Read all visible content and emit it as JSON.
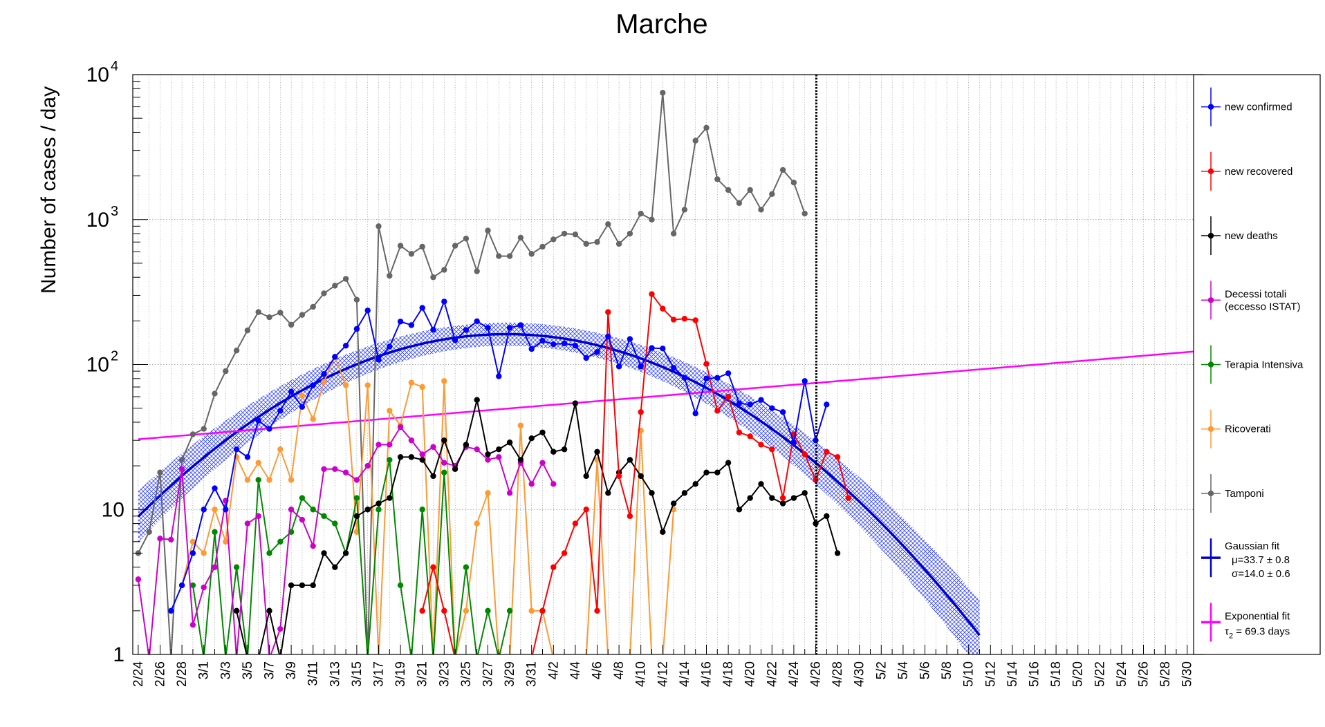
{
  "chart_data": {
    "type": "line",
    "title": "Marche",
    "ylabel": "Number of cases / day",
    "xlabel": "",
    "yscale": "log",
    "ylim": [
      1,
      10000
    ],
    "x_start": "2/24",
    "x_end": "5/31",
    "y_tick_labels": [
      {
        "value": 1,
        "text": "1"
      },
      {
        "value": 10,
        "text": "10"
      },
      {
        "value": 100,
        "base": "10",
        "exp": "2"
      },
      {
        "value": 1000,
        "base": "10",
        "exp": "3"
      },
      {
        "value": 10000,
        "base": "10",
        "exp": "4"
      }
    ],
    "x_tick_labels": [
      "2/24",
      "2/26",
      "2/28",
      "3/1",
      "3/3",
      "3/5",
      "3/7",
      "3/9",
      "3/11",
      "3/13",
      "3/15",
      "3/17",
      "3/19",
      "3/21",
      "3/23",
      "3/25",
      "3/27",
      "3/29",
      "3/31",
      "4/2",
      "4/4",
      "4/6",
      "4/8",
      "4/10",
      "4/12",
      "4/14",
      "4/16",
      "4/18",
      "4/20",
      "4/22",
      "4/24",
      "4/26",
      "4/28",
      "4/30",
      "5/2",
      "5/4",
      "5/6",
      "5/8",
      "5/10",
      "5/12",
      "5/14",
      "5/16",
      "5/18",
      "5/20",
      "5/22",
      "5/24",
      "5/26",
      "5/28",
      "5/30"
    ],
    "vertical_line_at": "4/26",
    "grid": true,
    "legend_position": "right",
    "series": [
      {
        "name": "new confirmed",
        "color": "#0000ff",
        "start": "2/27",
        "values": [
          2,
          3,
          5,
          10,
          14,
          10,
          26,
          23,
          41,
          36,
          48,
          65,
          51,
          72,
          86,
          113,
          135,
          176,
          236,
          108,
          133,
          198,
          187,
          246,
          174,
          272,
          147,
          173,
          199,
          179,
          83,
          179,
          187,
          128,
          146,
          138,
          140,
          135,
          111,
          122,
          156,
          97,
          150,
          97,
          130,
          129,
          95,
          81,
          46,
          80,
          81,
          87,
          54,
          53,
          57,
          50,
          47,
          29,
          77,
          30,
          53
        ]
      },
      {
        "name": "new recovered",
        "color": "#ff0000",
        "start": "3/21",
        "values": [
          2,
          4,
          2,
          null,
          null,
          null,
          null,
          null,
          null,
          null,
          null,
          2,
          4,
          5,
          8,
          10,
          2,
          230,
          17,
          9,
          47,
          306,
          243,
          204,
          207,
          202,
          101,
          48,
          60,
          34,
          32,
          28,
          26,
          12,
          33,
          24,
          16,
          25,
          23,
          12
        ]
      },
      {
        "name": "new deaths",
        "color": "#000000",
        "start": "3/4",
        "values": [
          2,
          null,
          null,
          2,
          null,
          3,
          3,
          3,
          5,
          4,
          5,
          9,
          10,
          11,
          12,
          23,
          23,
          22,
          17,
          30,
          19,
          28,
          57,
          24,
          26,
          29,
          22,
          31,
          34,
          25,
          26,
          54,
          17,
          25,
          13,
          18,
          22,
          17,
          13,
          7,
          11,
          13,
          15,
          18,
          18,
          21,
          10,
          12,
          15,
          12,
          11,
          12,
          13,
          8,
          9,
          5
        ]
      },
      {
        "name": "Decessi totali\n(eccesso ISTAT)",
        "color": "#cc00cc",
        "start": "2/24",
        "values": [
          3.3,
          null,
          6.3,
          6.2,
          19,
          1.6,
          2.9,
          4,
          11.5,
          null,
          8,
          9,
          null,
          1.5,
          10,
          8.5,
          5.6,
          19,
          19,
          18,
          16,
          20,
          28,
          28,
          37,
          30,
          24,
          27,
          21,
          20,
          27,
          26,
          22,
          23,
          13,
          21,
          15,
          21,
          15
        ]
      },
      {
        "name": "Terapia Intensiva",
        "color": "#008800",
        "start": "2/29",
        "values": [
          3,
          null,
          7,
          null,
          4,
          null,
          16,
          5,
          6,
          7,
          12,
          10,
          9,
          8,
          5,
          12,
          null,
          10,
          22,
          3,
          null,
          10,
          null,
          18,
          null,
          4,
          null,
          2,
          null,
          2
        ]
      },
      {
        "name": "Ricoverati",
        "color": "#ff9933",
        "start": "2/28",
        "values": [
          3,
          6,
          5,
          10,
          6,
          23,
          16,
          21,
          16,
          26,
          16,
          61,
          42,
          76,
          113,
          72,
          7,
          72,
          null,
          48,
          38,
          75,
          70,
          null,
          77,
          null,
          2,
          8,
          13,
          null,
          null,
          38,
          2,
          2,
          null,
          null,
          null,
          null,
          22,
          null,
          null,
          null,
          35,
          null,
          null,
          10
        ]
      },
      {
        "name": "Tamponi",
        "color": "#666666",
        "start": "2/24",
        "values": [
          5,
          7,
          18,
          null,
          22,
          33,
          36,
          63,
          90,
          125,
          172,
          230,
          212,
          228,
          188,
          220,
          250,
          310,
          350,
          390,
          280,
          null,
          900,
          410,
          660,
          580,
          650,
          400,
          450,
          660,
          740,
          440,
          840,
          560,
          560,
          750,
          580,
          650,
          730,
          800,
          790,
          680,
          700,
          930,
          680,
          800,
          1100,
          1000,
          7500,
          800,
          1170,
          3500,
          4300,
          1900,
          1600,
          1300,
          1600,
          1170,
          1500,
          2200,
          1800,
          1100
        ]
      }
    ],
    "fits": [
      {
        "name": "Gaussian fit",
        "color": "#0000cc",
        "band": true,
        "amplitude": 162,
        "mu": 33.7,
        "mu_err": 0.8,
        "sigma": 14.0,
        "sigma_err": 0.6,
        "x_from": 0,
        "x_to": 77,
        "label_lines": [
          "Gaussian fit",
          "μ=33.7  ± 0.8",
          "σ=14.0  ± 0.6"
        ]
      },
      {
        "name": "Exponential fit",
        "color": "#ff00ff",
        "a0": 30.5,
        "tau": 69.3,
        "x_from": 0,
        "x_to": 97,
        "label_lines": [
          "Exponential fit",
          "τ",
          "2",
          " = 69.3 days"
        ]
      }
    ]
  }
}
